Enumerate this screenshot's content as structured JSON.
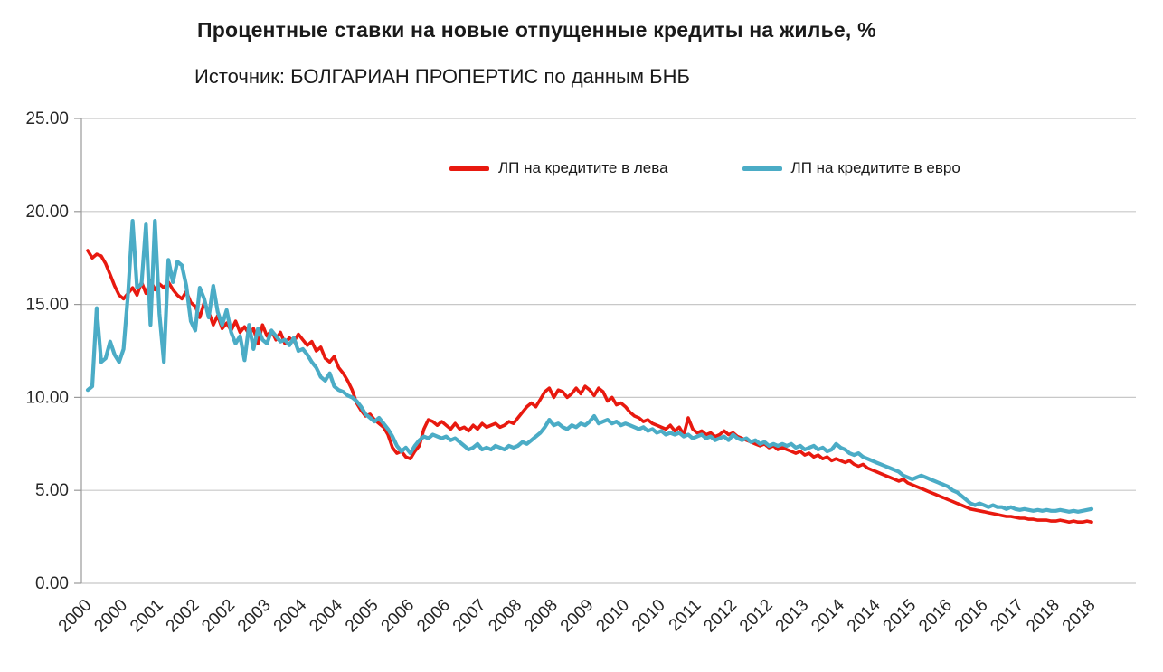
{
  "header": {
    "title": "Процентные ставки на новые отпущенные кредиты на жилье, %",
    "subtitle": "Источник: БОЛГАРИАН ПРОПЕРТИС по данным БНБ"
  },
  "chart_data": {
    "type": "line",
    "title": "Процентные ставки на новые отпущенные кредиты на жилье, %",
    "subtitle": "Источник: БОЛГАРИАН ПРОПЕРТИС по данным БНБ",
    "grid": "horizontal",
    "legend_position": "top-center",
    "x_unit": "monthly, 2000-01 to 2018-09",
    "ylim": [
      0,
      25
    ],
    "yticks": [
      "0.00",
      "5.00",
      "10.00",
      "15.00",
      "20.00",
      "25.00"
    ],
    "xtick_every": 8,
    "xtick_labels": [
      "2000",
      "2000",
      "2001",
      "2002",
      "2002",
      "2003",
      "2004",
      "2004",
      "2005",
      "2006",
      "2006",
      "2007",
      "2008",
      "2008",
      "2009",
      "2010",
      "2010",
      "2011",
      "2012",
      "2012",
      "2013",
      "2014",
      "2014",
      "2015",
      "2016",
      "2016",
      "2017",
      "2018",
      "2018"
    ],
    "series": [
      {
        "name": "ЛП на кредитите в лева",
        "color": "#e8190f",
        "width": 3.6,
        "values": [
          17.9,
          17.5,
          17.7,
          17.6,
          17.2,
          16.6,
          16.0,
          15.5,
          15.3,
          15.6,
          15.9,
          15.5,
          16.2,
          15.6,
          16.3,
          15.8,
          16.1,
          15.9,
          16.2,
          15.8,
          15.5,
          15.3,
          15.7,
          15.1,
          14.9,
          14.3,
          15.1,
          14.6,
          13.9,
          14.4,
          13.7,
          14.0,
          13.6,
          14.1,
          13.5,
          13.8,
          13.4,
          13.7,
          12.9,
          13.9,
          13.3,
          13.6,
          13.1,
          13.5,
          12.9,
          13.2,
          13.0,
          13.4,
          13.1,
          12.8,
          13.0,
          12.5,
          12.7,
          12.1,
          11.9,
          12.2,
          11.6,
          11.3,
          10.9,
          10.4,
          9.7,
          9.3,
          9.0,
          9.1,
          8.8,
          8.6,
          8.4,
          8.0,
          7.3,
          7.0,
          7.1,
          6.8,
          6.7,
          7.1,
          7.4,
          8.3,
          8.8,
          8.7,
          8.5,
          8.7,
          8.5,
          8.3,
          8.6,
          8.3,
          8.4,
          8.2,
          8.5,
          8.3,
          8.6,
          8.4,
          8.5,
          8.6,
          8.4,
          8.5,
          8.7,
          8.6,
          8.9,
          9.2,
          9.5,
          9.7,
          9.5,
          9.9,
          10.3,
          10.5,
          10.0,
          10.4,
          10.3,
          10.0,
          10.2,
          10.5,
          10.2,
          10.6,
          10.4,
          10.1,
          10.5,
          10.3,
          9.8,
          10.0,
          9.6,
          9.7,
          9.5,
          9.2,
          9.0,
          8.9,
          8.7,
          8.8,
          8.6,
          8.5,
          8.4,
          8.3,
          8.5,
          8.2,
          8.4,
          8.0,
          8.9,
          8.3,
          8.1,
          8.2,
          8.0,
          8.1,
          7.9,
          8.0,
          8.2,
          8.0,
          8.1,
          7.9,
          7.8,
          7.7,
          7.6,
          7.5,
          7.4,
          7.5,
          7.3,
          7.4,
          7.2,
          7.3,
          7.2,
          7.1,
          7.0,
          7.1,
          6.9,
          7.0,
          6.8,
          6.9,
          6.7,
          6.8,
          6.6,
          6.7,
          6.6,
          6.5,
          6.6,
          6.4,
          6.3,
          6.4,
          6.2,
          6.1,
          6.0,
          5.9,
          5.8,
          5.7,
          5.6,
          5.5,
          5.6,
          5.4,
          5.3,
          5.2,
          5.1,
          5.0,
          4.9,
          4.8,
          4.7,
          4.6,
          4.5,
          4.4,
          4.3,
          4.2,
          4.1,
          4.0,
          3.95,
          3.9,
          3.85,
          3.8,
          3.75,
          3.7,
          3.65,
          3.6,
          3.6,
          3.55,
          3.5,
          3.5,
          3.45,
          3.45,
          3.4,
          3.4,
          3.4,
          3.35,
          3.35,
          3.4,
          3.35,
          3.3,
          3.35,
          3.3,
          3.3,
          3.35,
          3.3
        ]
      },
      {
        "name": "ЛП на кредитите в евро",
        "color": "#4bacc6",
        "width": 4.2,
        "values": [
          10.4,
          10.6,
          14.8,
          11.9,
          12.1,
          13.0,
          12.3,
          11.9,
          12.6,
          15.6,
          19.5,
          15.9,
          16.1,
          19.3,
          13.9,
          19.5,
          14.5,
          11.9,
          17.4,
          16.2,
          17.3,
          17.1,
          16.0,
          14.1,
          13.6,
          15.9,
          15.3,
          14.3,
          16.0,
          14.6,
          13.9,
          14.7,
          13.5,
          12.9,
          13.3,
          12.0,
          13.9,
          12.6,
          13.7,
          13.1,
          12.9,
          13.6,
          13.3,
          13.0,
          13.1,
          12.8,
          13.2,
          12.5,
          12.6,
          12.3,
          11.9,
          11.6,
          11.1,
          10.9,
          11.3,
          10.6,
          10.4,
          10.3,
          10.1,
          10.0,
          9.8,
          9.5,
          9.1,
          8.9,
          8.7,
          8.9,
          8.6,
          8.3,
          7.9,
          7.4,
          7.1,
          7.3,
          7.0,
          7.4,
          7.7,
          7.9,
          7.8,
          8.0,
          7.9,
          7.8,
          7.9,
          7.7,
          7.8,
          7.6,
          7.4,
          7.2,
          7.3,
          7.5,
          7.2,
          7.3,
          7.2,
          7.4,
          7.3,
          7.2,
          7.4,
          7.3,
          7.4,
          7.6,
          7.5,
          7.7,
          7.9,
          8.1,
          8.4,
          8.8,
          8.5,
          8.6,
          8.4,
          8.3,
          8.5,
          8.4,
          8.6,
          8.5,
          8.7,
          9.0,
          8.6,
          8.7,
          8.8,
          8.6,
          8.7,
          8.5,
          8.6,
          8.5,
          8.4,
          8.3,
          8.4,
          8.2,
          8.3,
          8.1,
          8.2,
          8.0,
          8.1,
          8.0,
          8.1,
          7.9,
          8.0,
          7.8,
          7.9,
          8.0,
          7.8,
          7.9,
          7.7,
          7.8,
          7.9,
          7.7,
          8.0,
          7.8,
          7.7,
          7.8,
          7.6,
          7.7,
          7.5,
          7.6,
          7.4,
          7.5,
          7.4,
          7.5,
          7.4,
          7.5,
          7.3,
          7.4,
          7.2,
          7.3,
          7.4,
          7.2,
          7.3,
          7.1,
          7.2,
          7.5,
          7.3,
          7.2,
          7.0,
          6.9,
          7.0,
          6.8,
          6.7,
          6.6,
          6.5,
          6.4,
          6.3,
          6.2,
          6.1,
          6.0,
          5.8,
          5.7,
          5.6,
          5.7,
          5.8,
          5.7,
          5.6,
          5.5,
          5.4,
          5.3,
          5.2,
          5.0,
          4.9,
          4.7,
          4.5,
          4.3,
          4.2,
          4.3,
          4.2,
          4.1,
          4.2,
          4.1,
          4.1,
          4.0,
          4.1,
          4.0,
          3.95,
          4.0,
          3.95,
          3.9,
          3.95,
          3.9,
          3.95,
          3.9,
          3.9,
          3.95,
          3.9,
          3.85,
          3.9,
          3.85,
          3.9,
          3.95,
          4.0
        ]
      }
    ]
  }
}
